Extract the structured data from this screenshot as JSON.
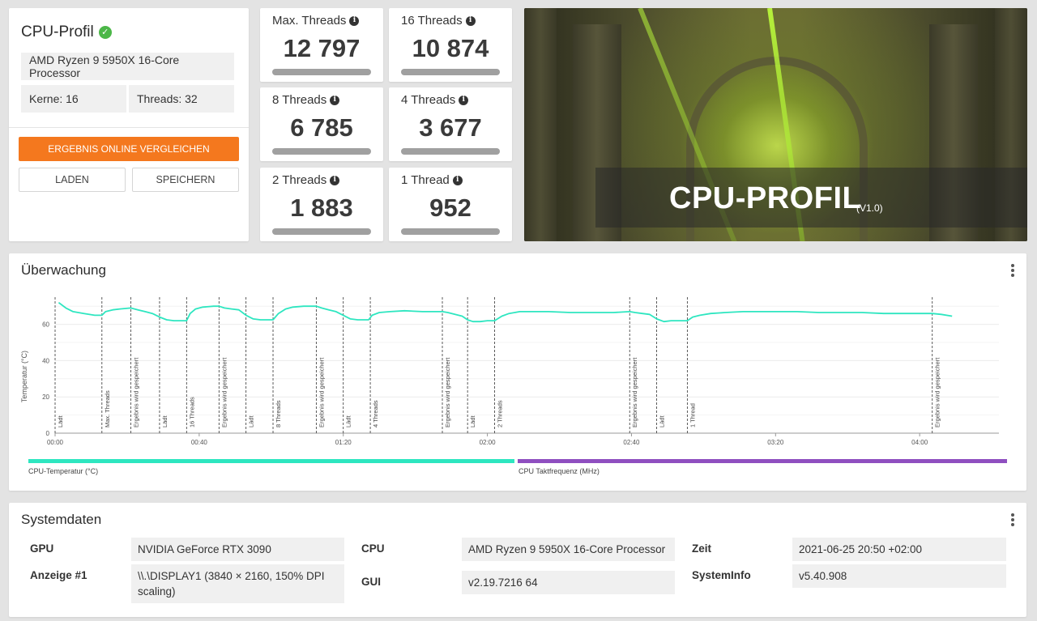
{
  "profile": {
    "title": "CPU-Profil",
    "cpu_name": "AMD Ryzen 9 5950X 16-Core Processor",
    "cores": "Kerne: 16",
    "threads": "Threads: 32",
    "compare_button": "ERGEBNIS ONLINE VERGLEICHEN",
    "load_button": "LADEN",
    "save_button": "SPEICHERN"
  },
  "scores": [
    {
      "label": "Max. Threads",
      "value": "12 797"
    },
    {
      "label": "16 Threads",
      "value": "10 874"
    },
    {
      "label": "8 Threads",
      "value": "6 785"
    },
    {
      "label": "4 Threads",
      "value": "3 677"
    },
    {
      "label": "2 Threads",
      "value": "1 883"
    },
    {
      "label": "1 Thread",
      "value": "952"
    }
  ],
  "hero": {
    "title": "CPU-PROFIL",
    "version": "(V1.0)"
  },
  "monitoring": {
    "title": "Überwachung",
    "legend": [
      {
        "label": "CPU-Temperatur (°C)",
        "color": "#2ee6c0"
      },
      {
        "label": "CPU Taktfrequenz (MHz)",
        "color": "#8f4fc0"
      }
    ]
  },
  "chart_data": {
    "type": "line",
    "ylabel": "Temperatur (°C)",
    "ylim": [
      0,
      75
    ],
    "yticks": [
      0,
      20,
      40,
      60
    ],
    "xlim": [
      0,
      262
    ],
    "xticks": [
      {
        "t": 0,
        "label": "00:00"
      },
      {
        "t": 40,
        "label": "00:40"
      },
      {
        "t": 80,
        "label": "01:20"
      },
      {
        "t": 120,
        "label": "02:00"
      },
      {
        "t": 160,
        "label": "02:40"
      },
      {
        "t": 200,
        "label": "03:20"
      },
      {
        "t": 240,
        "label": "04:00"
      }
    ],
    "markers": [
      {
        "t": 0,
        "label": "Lädt"
      },
      {
        "t": 13,
        "label": "Max. Threads"
      },
      {
        "t": 21,
        "label": "Ergebnis wird gespeichert"
      },
      {
        "t": 29,
        "label": "Lädt"
      },
      {
        "t": 36.5,
        "label": "16 Threads"
      },
      {
        "t": 45.5,
        "label": "Ergebnis wird gespeichert"
      },
      {
        "t": 53,
        "label": "Lädt"
      },
      {
        "t": 60.5,
        "label": "8 Threads"
      },
      {
        "t": 72.5,
        "label": "Ergebnis wird gespeichert"
      },
      {
        "t": 80,
        "label": "Lädt"
      },
      {
        "t": 87.5,
        "label": "4 Threads"
      },
      {
        "t": 107.5,
        "label": "Ergebnis wird gespeichert"
      },
      {
        "t": 114.5,
        "label": "Lädt"
      },
      {
        "t": 122,
        "label": "2 Threads"
      },
      {
        "t": 159.5,
        "label": "Ergebnis wird gespeichert"
      },
      {
        "t": 167,
        "label": "Lädt"
      },
      {
        "t": 175.5,
        "label": "1 Thread"
      },
      {
        "t": 243.5,
        "label": "Ergebnis wird gespeichert"
      }
    ],
    "series": [
      {
        "name": "CPU-Temperatur (°C)",
        "color": "#2ee6c0",
        "points": [
          [
            1,
            72
          ],
          [
            3,
            69
          ],
          [
            5,
            67
          ],
          [
            8,
            66
          ],
          [
            11,
            65
          ],
          [
            13,
            65
          ],
          [
            14,
            67
          ],
          [
            16,
            68
          ],
          [
            18,
            68.5
          ],
          [
            21,
            69
          ],
          [
            23,
            68
          ],
          [
            25,
            67
          ],
          [
            27,
            66
          ],
          [
            29,
            64
          ],
          [
            31,
            62.5
          ],
          [
            33,
            62
          ],
          [
            35,
            62
          ],
          [
            36.5,
            62
          ],
          [
            37.5,
            66
          ],
          [
            39,
            68.5
          ],
          [
            41,
            69.5
          ],
          [
            44,
            70
          ],
          [
            45.5,
            70
          ],
          [
            47,
            69
          ],
          [
            49,
            68.5
          ],
          [
            51,
            68
          ],
          [
            53,
            65
          ],
          [
            55,
            63
          ],
          [
            57,
            62.5
          ],
          [
            59,
            62.5
          ],
          [
            60.5,
            62.5
          ],
          [
            62,
            66
          ],
          [
            64,
            68.5
          ],
          [
            66,
            69.5
          ],
          [
            69,
            70
          ],
          [
            72.5,
            70
          ],
          [
            74,
            69
          ],
          [
            76,
            68
          ],
          [
            78,
            67
          ],
          [
            80,
            65
          ],
          [
            82,
            63
          ],
          [
            84,
            62.5
          ],
          [
            87,
            62.5
          ],
          [
            88,
            65
          ],
          [
            90,
            66.5
          ],
          [
            93,
            67
          ],
          [
            97,
            67.5
          ],
          [
            102,
            67
          ],
          [
            107.5,
            67
          ],
          [
            109,
            66.5
          ],
          [
            111,
            65.5
          ],
          [
            113,
            64.5
          ],
          [
            114.5,
            62.5
          ],
          [
            116,
            61.5
          ],
          [
            118,
            61.5
          ],
          [
            120,
            62
          ],
          [
            122,
            62
          ],
          [
            124,
            64.5
          ],
          [
            126,
            66
          ],
          [
            129,
            67
          ],
          [
            132,
            67
          ],
          [
            137,
            67
          ],
          [
            143,
            66.5
          ],
          [
            150,
            66.5
          ],
          [
            155,
            66.5
          ],
          [
            159.5,
            67
          ],
          [
            161,
            66.5
          ],
          [
            163,
            66
          ],
          [
            165,
            65.5
          ],
          [
            167,
            63
          ],
          [
            169,
            61.5
          ],
          [
            171,
            62
          ],
          [
            173,
            62
          ],
          [
            175.5,
            62
          ],
          [
            177,
            64
          ],
          [
            179,
            65
          ],
          [
            182,
            66
          ],
          [
            186,
            66.5
          ],
          [
            191,
            67
          ],
          [
            196,
            67
          ],
          [
            201,
            67
          ],
          [
            206,
            67
          ],
          [
            212,
            66.5
          ],
          [
            218,
            66.5
          ],
          [
            224,
            66.5
          ],
          [
            230,
            66
          ],
          [
            236,
            66
          ],
          [
            241,
            66
          ],
          [
            243.5,
            66
          ],
          [
            246,
            65.5
          ],
          [
            249,
            64.5
          ]
        ]
      }
    ]
  },
  "system": {
    "title": "Systemdaten",
    "gpu_label": "GPU",
    "gpu_value": "NVIDIA GeForce RTX 3090",
    "display_label": "Anzeige #1",
    "display_value": "\\\\.\\DISPLAY1 (3840 × 2160, 150% DPI scaling)",
    "cpu_label": "CPU",
    "cpu_value": "AMD Ryzen 9 5950X 16-Core Processor",
    "gui_label": "GUI",
    "gui_value": "v2.19.7216 64",
    "time_label": "Zeit",
    "time_value": "2021-06-25 20:50 +02:00",
    "sysinfo_label": "SystemInfo",
    "sysinfo_value": "v5.40.908"
  }
}
